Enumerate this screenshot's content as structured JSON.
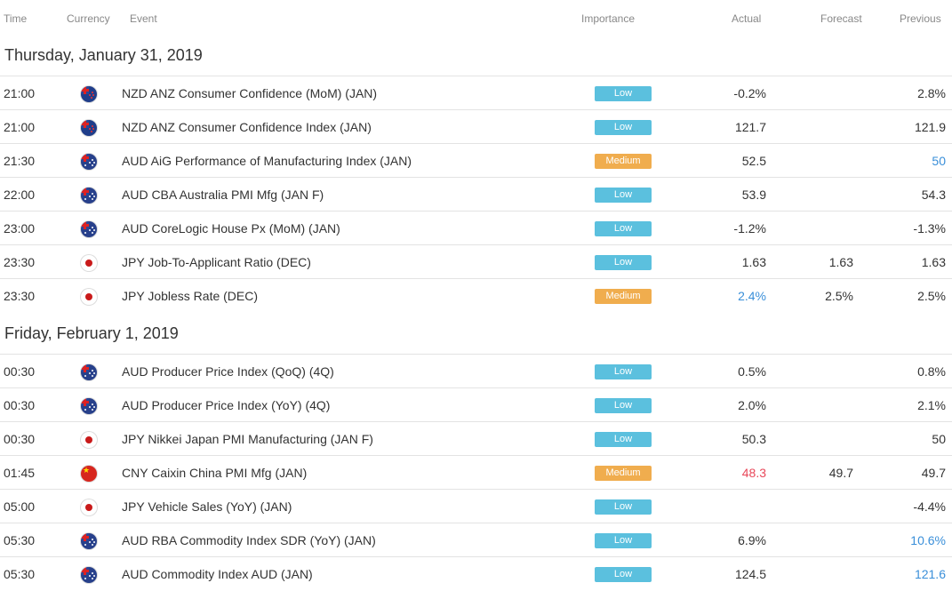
{
  "columns": {
    "time": "Time",
    "currency": "Currency",
    "event": "Event",
    "importance": "Importance",
    "actual": "Actual",
    "forecast": "Forecast",
    "previous": "Previous"
  },
  "colors": {
    "low": "#5bc0de",
    "medium": "#f0ad4e",
    "better": "#3a8fd9",
    "worse": "#e8485a"
  },
  "days": [
    {
      "title": "Thursday, January 31, 2019",
      "rows": [
        {
          "time": "21:00",
          "flag": "new-zealand-flag-icon",
          "event": "NZD ANZ Consumer Confidence (MoM) (JAN)",
          "importance": "Low",
          "actual": "-0.2%",
          "forecast": "",
          "previous": "2.8%"
        },
        {
          "time": "21:00",
          "flag": "new-zealand-flag-icon",
          "event": "NZD ANZ Consumer Confidence Index (JAN)",
          "importance": "Low",
          "actual": "121.7",
          "forecast": "",
          "previous": "121.9"
        },
        {
          "time": "21:30",
          "flag": "australia-flag-icon",
          "event": "AUD AiG Performance of Manufacturing Index (JAN)",
          "importance": "Medium",
          "actual": "52.5",
          "forecast": "",
          "previous": "50",
          "previous_tone": "pos"
        },
        {
          "time": "22:00",
          "flag": "australia-flag-icon",
          "event": "AUD CBA Australia PMI Mfg (JAN F)",
          "importance": "Low",
          "actual": "53.9",
          "forecast": "",
          "previous": "54.3"
        },
        {
          "time": "23:00",
          "flag": "australia-flag-icon",
          "event": "AUD CoreLogic House Px (MoM) (JAN)",
          "importance": "Low",
          "actual": "-1.2%",
          "forecast": "",
          "previous": "-1.3%"
        },
        {
          "time": "23:30",
          "flag": "japan-flag-icon",
          "event": "JPY Job-To-Applicant Ratio (DEC)",
          "importance": "Low",
          "actual": "1.63",
          "forecast": "1.63",
          "previous": "1.63"
        },
        {
          "time": "23:30",
          "flag": "japan-flag-icon",
          "event": "JPY Jobless Rate (DEC)",
          "importance": "Medium",
          "actual": "2.4%",
          "actual_tone": "pos",
          "forecast": "2.5%",
          "previous": "2.5%"
        }
      ]
    },
    {
      "title": "Friday, February 1, 2019",
      "rows": [
        {
          "time": "00:30",
          "flag": "australia-flag-icon",
          "event": "AUD Producer Price Index (QoQ) (4Q)",
          "importance": "Low",
          "actual": "0.5%",
          "forecast": "",
          "previous": "0.8%"
        },
        {
          "time": "00:30",
          "flag": "australia-flag-icon",
          "event": "AUD Producer Price Index (YoY) (4Q)",
          "importance": "Low",
          "actual": "2.0%",
          "forecast": "",
          "previous": "2.1%"
        },
        {
          "time": "00:30",
          "flag": "japan-flag-icon",
          "event": "JPY Nikkei Japan PMI Manufacturing (JAN F)",
          "importance": "Low",
          "actual": "50.3",
          "forecast": "",
          "previous": "50"
        },
        {
          "time": "01:45",
          "flag": "china-flag-icon",
          "event": "CNY Caixin China PMI Mfg (JAN)",
          "importance": "Medium",
          "actual": "48.3",
          "actual_tone": "neg",
          "forecast": "49.7",
          "previous": "49.7"
        },
        {
          "time": "05:00",
          "flag": "japan-flag-icon",
          "event": "JPY Vehicle Sales (YoY) (JAN)",
          "importance": "Low",
          "actual": "",
          "forecast": "",
          "previous": "-4.4%"
        },
        {
          "time": "05:30",
          "flag": "australia-flag-icon",
          "event": "AUD RBA Commodity Index SDR (YoY) (JAN)",
          "importance": "Low",
          "actual": "6.9%",
          "forecast": "",
          "previous": "10.6%",
          "previous_tone": "pos"
        },
        {
          "time": "05:30",
          "flag": "australia-flag-icon",
          "event": "AUD Commodity Index AUD (JAN)",
          "importance": "Low",
          "actual": "124.5",
          "forecast": "",
          "previous": "121.6",
          "previous_tone": "pos"
        }
      ]
    }
  ]
}
